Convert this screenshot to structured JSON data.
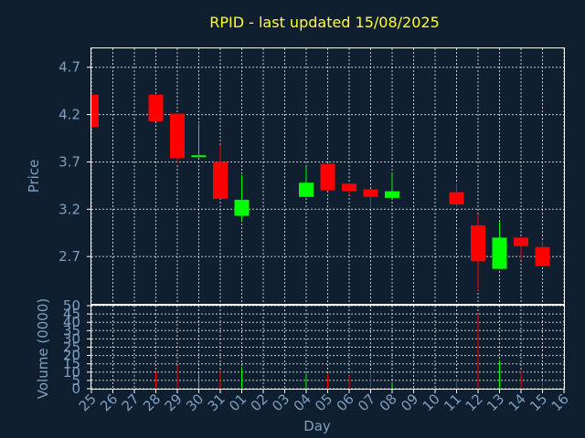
{
  "chart_data": [
    {
      "type": "candlestick",
      "title": "RPID - last updated 15/08/2025",
      "ylabel": "Price",
      "ylim": [
        2.2,
        4.9
      ],
      "yticks": [
        "2.7",
        "3.2",
        "3.7",
        "4.2",
        "4.7"
      ],
      "grid": true,
      "up_color": "#00ff00",
      "down_color": "#ff0000",
      "x": [
        "25",
        "26",
        "27",
        "28",
        "29",
        "30",
        "31",
        "01",
        "02",
        "03",
        "04",
        "05",
        "06",
        "07",
        "08",
        "09",
        "10",
        "11",
        "12",
        "13",
        "14",
        "15",
        "16"
      ],
      "candles": [
        {
          "day": "25",
          "open": 4.41,
          "high": 4.41,
          "low": 4.07,
          "close": 4.07
        },
        {
          "day": "28",
          "open": 4.41,
          "high": 4.41,
          "low": 4.13,
          "close": 4.13
        },
        {
          "day": "29",
          "open": 4.21,
          "high": 4.21,
          "low": 3.68,
          "close": 3.74
        },
        {
          "day": "30",
          "open": 3.75,
          "high": 4.1,
          "low": 3.75,
          "close": 3.77
        },
        {
          "day": "31",
          "open": 3.7,
          "high": 3.88,
          "low": 3.31,
          "close": 3.31
        },
        {
          "day": "01",
          "open": 3.13,
          "high": 3.56,
          "low": 3.08,
          "close": 3.3
        },
        {
          "day": "04",
          "open": 3.33,
          "high": 3.65,
          "low": 3.33,
          "close": 3.48
        },
        {
          "day": "05",
          "open": 3.68,
          "high": 3.68,
          "low": 3.39,
          "close": 3.4
        },
        {
          "day": "06",
          "open": 3.47,
          "high": 3.47,
          "low": 3.35,
          "close": 3.39
        },
        {
          "day": "07",
          "open": 3.41,
          "high": 3.41,
          "low": 3.2,
          "close": 3.33
        },
        {
          "day": "08",
          "open": 3.32,
          "high": 3.59,
          "low": 3.32,
          "close": 3.39
        },
        {
          "day": "11",
          "open": 3.38,
          "high": 3.47,
          "low": 3.22,
          "close": 3.25
        },
        {
          "day": "12",
          "open": 3.03,
          "high": 3.15,
          "low": 2.34,
          "close": 2.65
        },
        {
          "day": "13",
          "open": 2.57,
          "high": 3.08,
          "low": 2.57,
          "close": 2.9
        },
        {
          "day": "14",
          "open": 2.9,
          "high": 2.9,
          "low": 2.66,
          "close": 2.81
        },
        {
          "day": "15",
          "open": 2.8,
          "high": 2.86,
          "low": 2.6,
          "close": 2.6
        }
      ]
    },
    {
      "type": "bar",
      "ylabel": "Volume (0000)",
      "ylim": [
        0,
        50
      ],
      "yticks": [
        "0",
        "5",
        "10",
        "15",
        "20",
        "25",
        "30",
        "35",
        "40",
        "45",
        "50"
      ],
      "xlabel": "Day",
      "grid": true,
      "volumes": [
        {
          "day": "28",
          "value": 10,
          "color": "#ff0000"
        },
        {
          "day": "29",
          "value": 14,
          "color": "#ff0000"
        },
        {
          "day": "30",
          "value": 9,
          "color": "#00ff00"
        },
        {
          "day": "31",
          "value": 11,
          "color": "#ff0000"
        },
        {
          "day": "01",
          "value": 13,
          "color": "#00ff00"
        },
        {
          "day": "04",
          "value": 9,
          "color": "#00ff00"
        },
        {
          "day": "05",
          "value": 9,
          "color": "#ff0000"
        },
        {
          "day": "06",
          "value": 8,
          "color": "#ff0000"
        },
        {
          "day": "07",
          "value": 10,
          "color": "#ff0000"
        },
        {
          "day": "08",
          "value": 4,
          "color": "#00ff00"
        },
        {
          "day": "11",
          "value": 6,
          "color": "#ff0000"
        },
        {
          "day": "12",
          "value": 45,
          "color": "#ff0000"
        },
        {
          "day": "13",
          "value": 17,
          "color": "#00ff00"
        },
        {
          "day": "14",
          "value": 11,
          "color": "#ff0000"
        },
        {
          "day": "15",
          "value": 5,
          "color": "#ff0000"
        }
      ]
    }
  ]
}
